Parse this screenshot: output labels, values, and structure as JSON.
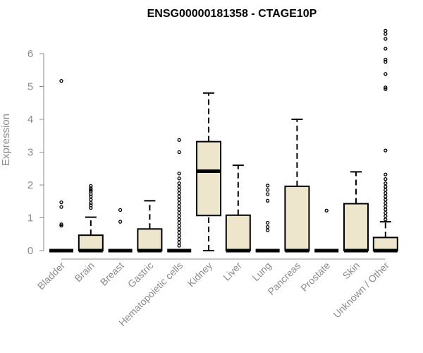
{
  "chart_data": {
    "type": "boxplot",
    "title": "ENSG00000181358 - CTAGE10P",
    "ylabel": "Expression",
    "xlabel": "",
    "ylim": [
      0,
      6.7
    ],
    "yticks": [
      0,
      1,
      2,
      3,
      4,
      5,
      6
    ],
    "grid": false,
    "colors": {
      "box_fill": "#ede6cd",
      "line": "#000000",
      "axis": "#8c8c8c"
    },
    "categories": [
      "Bladder",
      "Brain",
      "Breast",
      "Gastric",
      "Hematopoietic cells",
      "Kidney",
      "Liver",
      "Lung",
      "Pancreas",
      "Prostate",
      "Skin",
      "Unknown / Other"
    ],
    "boxes": [
      {
        "category": "Bladder",
        "q1": 0,
        "median": 0,
        "q3": 0,
        "whisker_low": 0,
        "whisker_high": 0,
        "outliers": [
          5.17,
          1.47,
          1.33,
          0.8,
          0.76
        ]
      },
      {
        "category": "Brain",
        "q1": 0,
        "median": 0,
        "q3": 0.47,
        "whisker_low": 0,
        "whisker_high": 1.02,
        "outliers": [
          1.97,
          1.9,
          1.85,
          1.8,
          1.72,
          1.65,
          1.55,
          1.45,
          1.38,
          1.3
        ]
      },
      {
        "category": "Breast",
        "q1": 0,
        "median": 0,
        "q3": 0,
        "whisker_low": 0,
        "whisker_high": 0,
        "outliers": [
          1.24,
          0.88
        ]
      },
      {
        "category": "Gastric",
        "q1": 0,
        "median": 0,
        "q3": 0.66,
        "whisker_low": 0,
        "whisker_high": 1.52,
        "outliers": []
      },
      {
        "category": "Hematopoietic cells",
        "q1": 0,
        "median": 0,
        "q3": 0,
        "whisker_low": 0,
        "whisker_high": 0,
        "outliers": [
          3.37,
          3.0,
          2.35,
          2.2,
          2.05,
          1.95,
          1.85,
          1.75,
          1.65,
          1.55,
          1.45,
          1.35,
          1.25,
          1.15,
          1.05,
          0.95,
          0.85,
          0.75,
          0.65,
          0.55,
          0.45,
          0.35,
          0.25,
          0.15
        ]
      },
      {
        "category": "Kidney",
        "q1": 1.07,
        "median": 2.42,
        "q3": 3.32,
        "whisker_low": 0,
        "whisker_high": 4.8,
        "outliers": []
      },
      {
        "category": "Liver",
        "q1": 0,
        "median": 0,
        "q3": 1.08,
        "whisker_low": 0,
        "whisker_high": 2.6,
        "outliers": []
      },
      {
        "category": "Lung",
        "q1": 0,
        "median": 0,
        "q3": 0,
        "whisker_low": 0,
        "whisker_high": 0,
        "outliers": [
          1.98,
          1.85,
          1.72,
          1.52,
          0.85,
          0.72,
          0.62
        ]
      },
      {
        "category": "Pancreas",
        "q1": 0,
        "median": 0,
        "q3": 1.96,
        "whisker_low": 0,
        "whisker_high": 4.0,
        "outliers": []
      },
      {
        "category": "Prostate",
        "q1": 0,
        "median": 0,
        "q3": 0,
        "whisker_low": 0,
        "whisker_high": 0,
        "outliers": [
          1.22
        ]
      },
      {
        "category": "Skin",
        "q1": 0,
        "median": 0,
        "q3": 1.43,
        "whisker_low": 0,
        "whisker_high": 2.4,
        "outliers": []
      },
      {
        "category": "Unknown / Other",
        "q1": 0,
        "median": 0,
        "q3": 0.4,
        "whisker_low": 0,
        "whisker_high": 0.88,
        "outliers": [
          6.7,
          6.6,
          6.45,
          6.15,
          5.82,
          5.75,
          5.38,
          4.97,
          4.92,
          3.05,
          2.32,
          2.18,
          2.05,
          1.95,
          1.85,
          1.75,
          1.65,
          1.55,
          1.45,
          1.35,
          1.25,
          1.15,
          1.05,
          0.95
        ]
      }
    ]
  }
}
